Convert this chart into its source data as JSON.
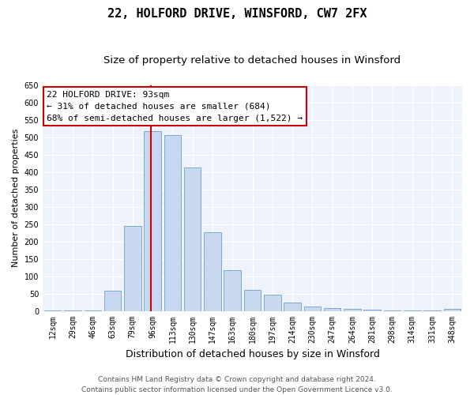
{
  "title1": "22, HOLFORD DRIVE, WINSFORD, CW7 2FX",
  "title2": "Size of property relative to detached houses in Winsford",
  "xlabel": "Distribution of detached houses by size in Winsford",
  "ylabel": "Number of detached properties",
  "categories": [
    "12sqm",
    "29sqm",
    "46sqm",
    "63sqm",
    "79sqm",
    "96sqm",
    "113sqm",
    "130sqm",
    "147sqm",
    "163sqm",
    "180sqm",
    "197sqm",
    "214sqm",
    "230sqm",
    "247sqm",
    "264sqm",
    "281sqm",
    "298sqm",
    "314sqm",
    "331sqm",
    "348sqm"
  ],
  "values": [
    2,
    2,
    2,
    58,
    245,
    518,
    506,
    412,
    227,
    117,
    60,
    46,
    23,
    12,
    8,
    5,
    4,
    2,
    1,
    1,
    5
  ],
  "bar_color": "#c8d8f0",
  "bar_edge_color": "#7aaad0",
  "vline_color": "#cc0000",
  "annotation_text": "22 HOLFORD DRIVE: 93sqm\n← 31% of detached houses are smaller (684)\n68% of semi-detached houses are larger (1,522) →",
  "annotation_box_facecolor": "#ffffff",
  "annotation_box_edgecolor": "#cc0000",
  "ylim": [
    0,
    650
  ],
  "yticks": [
    0,
    50,
    100,
    150,
    200,
    250,
    300,
    350,
    400,
    450,
    500,
    550,
    600,
    650
  ],
  "footer1": "Contains HM Land Registry data © Crown copyright and database right 2024.",
  "footer2": "Contains public sector information licensed under the Open Government Licence v3.0.",
  "bg_color": "#eef2fb",
  "grid_color": "#ffffff",
  "title1_fontsize": 11,
  "title2_fontsize": 9.5,
  "xlabel_fontsize": 9,
  "ylabel_fontsize": 8,
  "tick_fontsize": 7,
  "annotation_fontsize": 8,
  "footer_fontsize": 6.5,
  "vline_x": 4.9
}
